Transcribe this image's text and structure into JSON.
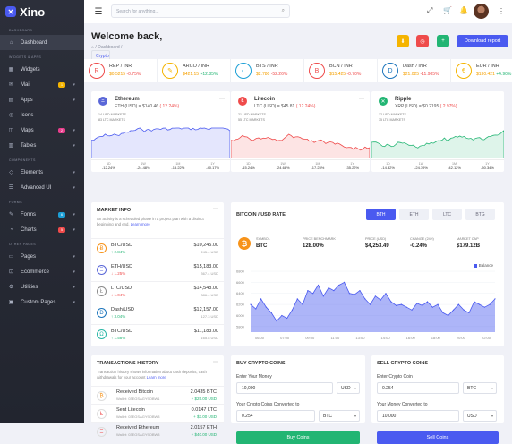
{
  "brand": {
    "name": "Xino"
  },
  "sidebar": {
    "sections": [
      {
        "title": "DASHBOARD",
        "items": [
          {
            "label": "Dashboard"
          }
        ]
      },
      {
        "title": "WIDGETS & APPS",
        "items": [
          {
            "label": "Widgets"
          },
          {
            "label": "Mail",
            "badge": "1"
          },
          {
            "label": "Apps"
          },
          {
            "label": "Icons"
          },
          {
            "label": "Maps",
            "badge": "2"
          },
          {
            "label": "Tables"
          }
        ]
      },
      {
        "title": "COMPONENTS",
        "items": [
          {
            "label": "Elements"
          },
          {
            "label": "Advanced UI"
          }
        ]
      },
      {
        "title": "FORMS",
        "items": [
          {
            "label": "Forms",
            "badge": "6"
          },
          {
            "label": "Charts",
            "badge": "5"
          }
        ]
      },
      {
        "title": "OTHER PAGES",
        "items": [
          {
            "label": "Pages"
          },
          {
            "label": "Ecommerce"
          },
          {
            "label": "Utilities"
          },
          {
            "label": "Custom Pages"
          }
        ]
      }
    ]
  },
  "topbar": {
    "search_placeholder": "Search for anything..."
  },
  "header": {
    "title": "Welcome back,",
    "crumb_home": "Dashboard",
    "crumb_current": "Crypto",
    "download_label": "Download report"
  },
  "tickers": [
    {
      "name": "REP / INR",
      "price": "$0.5215",
      "change": "-0.75%",
      "color": "#ef4b4b"
    },
    {
      "name": "ARCO / INR",
      "price": "$421.15",
      "change": "+12.85%",
      "color": "#22b573"
    },
    {
      "name": "BTS / INR",
      "price": "$2.780",
      "change": "-52.26%",
      "color": "#ef4b4b"
    },
    {
      "name": "BCN / INR",
      "price": "$15.425",
      "change": "-0.70%",
      "color": "#ef4b4b"
    },
    {
      "name": "Dash / INR",
      "price": "$21.025",
      "change": "-11.985%",
      "color": "#ef4b4b"
    },
    {
      "name": "EUR / INR",
      "price": "$130.421",
      "change": "+4.90%",
      "color": "#22b573"
    }
  ],
  "market_cards": [
    {
      "name": "Ethereum",
      "pair": "ETH (USD) = $140.46",
      "change": "( 12.24%)",
      "m1": "14 USD MARKETS",
      "m2": "83 LTC MARKETS",
      "color": "#4a5af0",
      "f": [
        [
          "1D",
          "-12.24%"
        ],
        [
          "1W",
          "-24.48%"
        ],
        [
          "1M",
          "-15.22%"
        ],
        [
          "1Y",
          "-40.17%"
        ]
      ]
    },
    {
      "name": "Litecoin",
      "pair": "LTC (USD) = $45.81",
      "change": "( 12.24%)",
      "m1": "21 USD MARKETS",
      "m2": "55 LTC MARKETS",
      "color": "#ef4b4b",
      "f": [
        [
          "1D",
          "-15.24%"
        ],
        [
          "1W",
          "-24.68%"
        ],
        [
          "1M",
          "-17.23%"
        ],
        [
          "1Y",
          "-35.22%"
        ]
      ]
    },
    {
      "name": "Ripple",
      "pair": "XRP (USD) = $0.2195",
      "change": "( 2.97%)",
      "m1": "12 USD MARKETS",
      "m2": "35 LTC MARKETS",
      "color": "#22b573",
      "f": [
        [
          "1D",
          "-14.32%"
        ],
        [
          "1W",
          "-24.39%"
        ],
        [
          "1M",
          "-42.12%"
        ],
        [
          "1Y",
          "-50.34%"
        ]
      ]
    }
  ],
  "market_info": {
    "title": "MARKET INFO",
    "desc": "An activity is a scheduled phase in a project plan with a distinct beginning and end.",
    "learn": "Learn more",
    "coins": [
      {
        "name": "BTC/USD",
        "pct": "↑ 2.84%",
        "pc": "#22b573",
        "price": "$10,245.00",
        "vol": "245.4 USD",
        "icon": "Ƀ",
        "ic": "#f7931a"
      },
      {
        "name": "ETH/USD",
        "pct": "↓ 1.25%",
        "pc": "#ef4b4b",
        "price": "$15,183.00",
        "vol": "367.4 USD",
        "icon": "Ξ",
        "ic": "#5a67d8"
      },
      {
        "name": "LTC/USD",
        "pct": "↓ 1.04%",
        "pc": "#ef4b4b",
        "price": "$14,548.00",
        "vol": "386.4 USD",
        "icon": "Ł",
        "ic": "#8a8a8a"
      },
      {
        "name": "Dash/USD",
        "pct": "↑ 3.04%",
        "pc": "#22b573",
        "price": "$12,157.00",
        "vol": "127.3 USD",
        "icon": "D",
        "ic": "#1c75bc"
      },
      {
        "name": "BTC/USD",
        "pct": "↑ 1.58%",
        "pc": "#22b573",
        "price": "$11,183.00",
        "vol": "165.8 USD",
        "icon": "Ω",
        "ic": "#29b6a6"
      }
    ]
  },
  "btc_chart": {
    "title": "BITCOIN / USD RATE",
    "tabs": [
      "BTH",
      "ETH",
      "LTC",
      "BTG"
    ],
    "stats": [
      [
        "SYMBOL",
        "BTC"
      ],
      [
        "PRICE BENCHMARK",
        "128.00%"
      ],
      [
        "PRICE (USD)",
        "$4,253.49"
      ],
      [
        "CHANGE (24H)",
        "-0.24%"
      ],
      [
        "MARKET CAP",
        "$179.12B"
      ]
    ],
    "legend": "Balance"
  },
  "chart_data": {
    "type": "area",
    "title": "BITCOIN / USD RATE",
    "series": [
      {
        "name": "Balance",
        "values": [
          6200,
          6120,
          6300,
          6150,
          6050,
          5900,
          6000,
          5950,
          6100,
          6300,
          6200,
          6450,
          6400,
          6550,
          6350,
          6500,
          6450,
          6550,
          6600,
          6400,
          6380,
          6450,
          6300,
          6200,
          6350,
          6280,
          6400,
          6250,
          6180,
          6200,
          6150,
          6100,
          6220,
          6180,
          6250,
          6150,
          6200,
          6050,
          6000,
          6100,
          6200,
          6100,
          6050,
          6250,
          6200,
          6150,
          6200,
          6300
        ]
      }
    ],
    "xticks": [
      "06:00",
      "07:00",
      "09:00",
      "11:00",
      "13:00",
      "14:00",
      "16:00",
      "18:00",
      "20:00",
      "22:00"
    ],
    "yticks": [
      "6800",
      "6600",
      "6400",
      "6200",
      "6000",
      "5800"
    ],
    "ylim": [
      5700,
      6800
    ]
  },
  "transactions": {
    "title": "TRANSACTIONS HISTORY",
    "desc": "Transaction history shows information about cash deposits, cash withdrawals for your account",
    "learn": "Learn more",
    "rows": [
      {
        "name": "Received Bitcoin",
        "wallet": "Wallet: 03EGSAGY9OBW1",
        "amount": "2.0435 BTC",
        "usd": "+ $25.00 USD"
      },
      {
        "name": "Sent Litecoin",
        "wallet": "Wallet: 03EGSAGY9OBW3",
        "amount": "0.0147 LTC",
        "usd": "+ $3.00 USD"
      },
      {
        "name": "Received Ethereum",
        "wallet": "Wallet: 03EGSAGY9OBW3",
        "amount": "2.0157 ETH",
        "usd": "+ $40.00 USD"
      }
    ]
  },
  "buy": {
    "title": "BUY CRYPTO COINS",
    "l1": "Enter Your Money",
    "v1": "10,000",
    "c1": "USD",
    "l2": "Your Crypto Coins Converted to",
    "v2": "0.254",
    "c2": "BTC",
    "btn": "Buy Coins",
    "btn_color": "#22b573"
  },
  "sell": {
    "title": "SELL CRYPTO COINS",
    "l1": "Enter Crypto Coin",
    "v1": "0.254",
    "c1": "BTC",
    "l2": "Your Money Converted to",
    "v2": "10,000",
    "c2": "USD",
    "btn": "Sell Coins",
    "btn_color": "#4a5af0"
  }
}
